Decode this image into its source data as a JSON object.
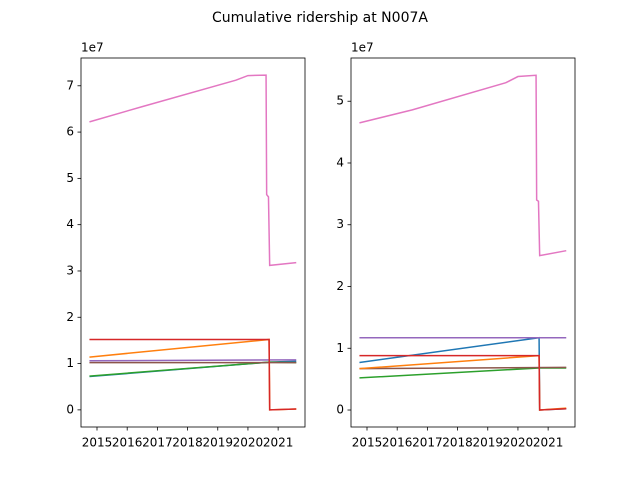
{
  "suptitle": "Cumulative ridership at N007A",
  "chart_data": [
    {
      "type": "line",
      "offset_label": "1e7",
      "xlim": [
        2014.47,
        2021.89
      ],
      "ylim": [
        -0.37,
        7.6
      ],
      "xticks": [
        2015,
        2016,
        2017,
        2018,
        2019,
        2020,
        2021
      ],
      "yticks": [
        0,
        1,
        2,
        3,
        4,
        5,
        6,
        7
      ],
      "series": [
        {
          "color": "#1f77b4",
          "x": [
            2014.75,
            2020.7,
            2021.6
          ],
          "values": [
            0.72,
            1.03,
            1.05
          ]
        },
        {
          "color": "#ff7f0e",
          "x": [
            2014.75,
            2020.7,
            2020.72,
            2021.6
          ],
          "values": [
            1.14,
            1.52,
            0.0,
            0.02
          ]
        },
        {
          "color": "#2ca02c",
          "x": [
            2014.75,
            2020.7,
            2021.6
          ],
          "values": [
            0.73,
            1.03,
            1.02
          ]
        },
        {
          "color": "#9467bd",
          "x": [
            2014.75,
            2021.6
          ],
          "values": [
            1.06,
            1.08
          ]
        },
        {
          "color": "#8c564b",
          "x": [
            2014.75,
            2021.6
          ],
          "values": [
            1.02,
            1.02
          ]
        },
        {
          "color": "#e377c2",
          "x": [
            2014.75,
            2016.5,
            2019.6,
            2020.0,
            2020.6,
            2020.62,
            2020.68,
            2020.72,
            2021.6
          ],
          "values": [
            6.22,
            6.55,
            7.12,
            7.22,
            7.23,
            4.65,
            4.6,
            3.12,
            3.18
          ]
        },
        {
          "color": "#d62728",
          "x": [
            2014.75,
            2020.7,
            2020.72,
            2021.6
          ],
          "values": [
            1.52,
            1.52,
            0.0,
            0.02
          ]
        }
      ]
    },
    {
      "type": "line",
      "offset_label": "1e7",
      "xlim": [
        2014.47,
        2021.89
      ],
      "ylim": [
        -0.275,
        5.7
      ],
      "xticks": [
        2015,
        2016,
        2017,
        2018,
        2019,
        2020,
        2021
      ],
      "yticks": [
        0,
        1,
        2,
        3,
        4,
        5
      ],
      "series": [
        {
          "color": "#1f77b4",
          "x": [
            2014.75,
            2020.7,
            2020.72,
            2021.6
          ],
          "values": [
            0.77,
            1.17,
            0.0,
            0.02
          ]
        },
        {
          "color": "#2ca02c",
          "x": [
            2014.75,
            2020.7,
            2021.6
          ],
          "values": [
            0.52,
            0.68,
            0.68
          ]
        },
        {
          "color": "#9467bd",
          "x": [
            2014.75,
            2021.6
          ],
          "values": [
            1.17,
            1.17
          ]
        },
        {
          "color": "#8c564b",
          "x": [
            2014.75,
            2021.6
          ],
          "values": [
            0.67,
            0.69
          ]
        },
        {
          "color": "#ff7f0e",
          "x": [
            2014.75,
            2020.7,
            2020.72,
            2021.6
          ],
          "values": [
            0.67,
            0.88,
            0.0,
            0.03
          ]
        },
        {
          "color": "#e377c2",
          "x": [
            2014.75,
            2016.5,
            2019.6,
            2020.0,
            2020.6,
            2020.62,
            2020.68,
            2020.72,
            2021.6
          ],
          "values": [
            4.65,
            4.86,
            5.3,
            5.4,
            5.42,
            3.4,
            3.38,
            2.5,
            2.58
          ]
        },
        {
          "color": "#d62728",
          "x": [
            2014.75,
            2020.7,
            2020.72,
            2021.6
          ],
          "values": [
            0.88,
            0.88,
            0.0,
            0.02
          ]
        }
      ]
    }
  ]
}
